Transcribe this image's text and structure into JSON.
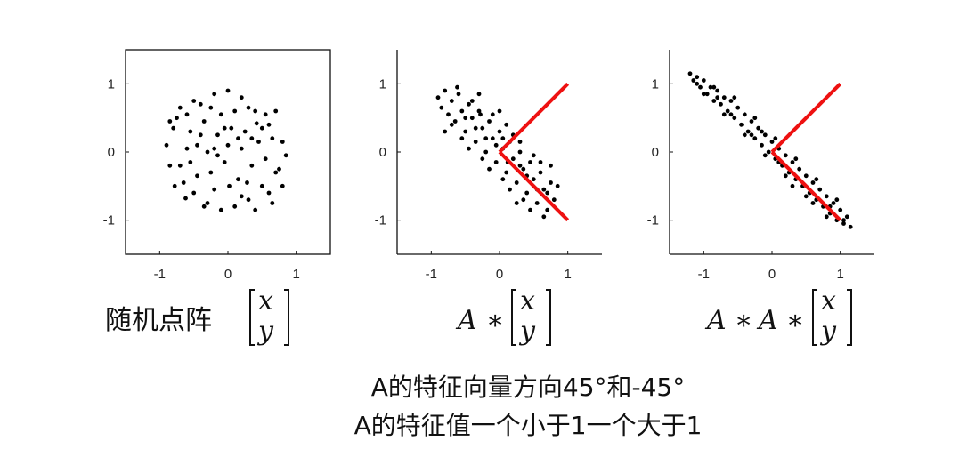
{
  "chart_data": [
    {
      "type": "scatter",
      "name": "random-points",
      "title": "",
      "xlim": [
        -1.5,
        1.5
      ],
      "ylim": [
        -1.5,
        1.5
      ],
      "xticks": [
        -1,
        0,
        1
      ],
      "yticks": [
        -1,
        0,
        1
      ],
      "xtick_labels": [
        "-1",
        "0",
        "1"
      ],
      "ytick_labels": [
        "1",
        "0",
        "-1"
      ],
      "box": true,
      "grid": false,
      "point_color": "#000000",
      "points": [
        [
          -0.9,
          0.1
        ],
        [
          -0.8,
          0.35
        ],
        [
          -0.7,
          -0.2
        ],
        [
          -0.6,
          0.55
        ],
        [
          -0.5,
          -0.6
        ],
        [
          -0.4,
          0.7
        ],
        [
          -0.3,
          -0.75
        ],
        [
          -0.2,
          0.85
        ],
        [
          -0.1,
          -0.85
        ],
        [
          0.0,
          0.9
        ],
        [
          0.1,
          -0.8
        ],
        [
          0.2,
          0.8
        ],
        [
          0.3,
          -0.7
        ],
        [
          0.4,
          0.6
        ],
        [
          0.5,
          -0.5
        ],
        [
          0.6,
          0.4
        ],
        [
          0.7,
          -0.3
        ],
        [
          0.8,
          0.15
        ],
        [
          0.85,
          -0.05
        ],
        [
          -0.85,
          -0.2
        ],
        [
          -0.75,
          0.5
        ],
        [
          -0.65,
          -0.45
        ],
        [
          -0.55,
          0.3
        ],
        [
          -0.45,
          -0.35
        ],
        [
          -0.35,
          0.45
        ],
        [
          -0.25,
          -0.3
        ],
        [
          -0.15,
          0.25
        ],
        [
          -0.05,
          -0.15
        ],
        [
          0.05,
          0.35
        ],
        [
          0.15,
          -0.4
        ],
        [
          0.25,
          0.3
        ],
        [
          0.35,
          -0.2
        ],
        [
          0.45,
          0.15
        ],
        [
          0.55,
          -0.1
        ],
        [
          0.65,
          0.2
        ],
        [
          0.75,
          -0.25
        ],
        [
          -0.6,
          0.05
        ],
        [
          -0.45,
          0.1
        ],
        [
          -0.3,
          0.0
        ],
        [
          -0.15,
          -0.05
        ],
        [
          0.0,
          0.1
        ],
        [
          0.2,
          0.05
        ],
        [
          0.35,
          0.2
        ],
        [
          0.5,
          0.35
        ],
        [
          0.6,
          -0.6
        ],
        [
          -0.2,
          -0.55
        ],
        [
          -0.5,
          0.75
        ],
        [
          0.3,
          0.65
        ],
        [
          -0.7,
          0.65
        ],
        [
          -0.85,
          0.45
        ],
        [
          0.7,
          0.6
        ],
        [
          0.4,
          -0.85
        ],
        [
          -0.35,
          -0.8
        ],
        [
          0.1,
          0.6
        ],
        [
          -0.1,
          0.55
        ],
        [
          0.2,
          -0.65
        ],
        [
          -0.25,
          0.65
        ],
        [
          0.55,
          0.55
        ],
        [
          -0.55,
          -0.15
        ],
        [
          0.8,
          -0.5
        ],
        [
          -0.4,
          0.25
        ],
        [
          0.15,
          0.2
        ],
        [
          -0.05,
          0.35
        ],
        [
          0.28,
          -0.45
        ],
        [
          -0.62,
          -0.68
        ],
        [
          0.65,
          -0.75
        ],
        [
          -0.78,
          -0.5
        ],
        [
          0.02,
          -0.5
        ],
        [
          -0.2,
          0.05
        ],
        [
          0.42,
          0.42
        ]
      ]
    },
    {
      "type": "scatter",
      "name": "A-times-points",
      "title": "",
      "xlim": [
        -1.5,
        1.5
      ],
      "ylim": [
        -1.5,
        1.5
      ],
      "xticks": [
        -1,
        0,
        1
      ],
      "yticks": [
        -1,
        0,
        1
      ],
      "xtick_labels": [
        "-1",
        "0",
        "1"
      ],
      "ytick_labels": [
        "1",
        "0",
        "-1"
      ],
      "box": false,
      "grid": false,
      "point_color": "#000000",
      "line_color": "#ee1111",
      "lines": [
        {
          "x": [
            0,
            1
          ],
          "y": [
            0,
            1
          ]
        },
        {
          "x": [
            0,
            1
          ],
          "y": [
            0,
            -1
          ]
        }
      ],
      "points": [
        [
          -0.9,
          0.8
        ],
        [
          -0.85,
          0.65
        ],
        [
          -0.8,
          0.9
        ],
        [
          -0.75,
          0.55
        ],
        [
          -0.7,
          0.75
        ],
        [
          -0.65,
          0.45
        ],
        [
          -0.6,
          0.85
        ],
        [
          -0.55,
          0.6
        ],
        [
          -0.5,
          0.3
        ],
        [
          -0.45,
          0.7
        ],
        [
          -0.4,
          0.5
        ],
        [
          -0.35,
          0.15
        ],
        [
          -0.3,
          0.6
        ],
        [
          -0.25,
          0.35
        ],
        [
          -0.2,
          0.0
        ],
        [
          -0.15,
          0.45
        ],
        [
          -0.1,
          0.2
        ],
        [
          -0.05,
          -0.15
        ],
        [
          0.0,
          0.3
        ],
        [
          0.05,
          0.05
        ],
        [
          0.1,
          -0.3
        ],
        [
          0.15,
          0.15
        ],
        [
          0.2,
          -0.1
        ],
        [
          0.25,
          -0.45
        ],
        [
          0.3,
          0.0
        ],
        [
          0.35,
          -0.25
        ],
        [
          0.4,
          -0.6
        ],
        [
          0.45,
          -0.15
        ],
        [
          0.5,
          -0.4
        ],
        [
          0.55,
          -0.75
        ],
        [
          0.6,
          -0.3
        ],
        [
          0.65,
          -0.55
        ],
        [
          0.7,
          -0.85
        ],
        [
          0.75,
          -0.45
        ],
        [
          0.8,
          -0.7
        ],
        [
          0.85,
          -0.5
        ],
        [
          -0.7,
          0.4
        ],
        [
          -0.55,
          0.2
        ],
        [
          -0.4,
          0.75
        ],
        [
          -0.25,
          -0.1
        ],
        [
          -0.1,
          0.55
        ],
        [
          0.05,
          -0.4
        ],
        [
          0.2,
          0.25
        ],
        [
          0.35,
          -0.7
        ],
        [
          0.5,
          -0.05
        ],
        [
          0.65,
          -0.95
        ],
        [
          -0.45,
          0.05
        ],
        [
          -0.3,
          0.85
        ],
        [
          -0.15,
          -0.25
        ],
        [
          0.0,
          0.6
        ],
        [
          0.15,
          -0.55
        ],
        [
          0.3,
          0.15
        ],
        [
          0.45,
          -0.85
        ],
        [
          0.6,
          -0.15
        ],
        [
          0.75,
          -0.2
        ],
        [
          -0.8,
          0.3
        ],
        [
          -0.62,
          0.95
        ],
        [
          -0.35,
          0.35
        ],
        [
          0.1,
          0.4
        ],
        [
          0.25,
          -0.75
        ],
        [
          0.4,
          -0.35
        ],
        [
          0.55,
          -0.55
        ],
        [
          -0.05,
          0.1
        ],
        [
          0.05,
          0.2
        ],
        [
          -0.2,
          0.2
        ],
        [
          0.7,
          -0.6
        ],
        [
          -0.5,
          0.5
        ],
        [
          0.3,
          -0.2
        ],
        [
          0.12,
          -0.15
        ],
        [
          -0.28,
          0.55
        ]
      ]
    },
    {
      "type": "scatter",
      "name": "A-A-times-points",
      "title": "",
      "xlim": [
        -1.5,
        1.5
      ],
      "ylim": [
        -1.5,
        1.5
      ],
      "xticks": [
        -1,
        0,
        1
      ],
      "yticks": [
        -1,
        0,
        1
      ],
      "xtick_labels": [
        "-1",
        "0",
        "1"
      ],
      "ytick_labels": [
        "1",
        "0",
        "-1"
      ],
      "box": false,
      "grid": false,
      "point_color": "#000000",
      "line_color": "#ee1111",
      "lines": [
        {
          "x": [
            0,
            1
          ],
          "y": [
            0,
            1
          ]
        },
        {
          "x": [
            0,
            1
          ],
          "y": [
            0,
            -1
          ]
        }
      ],
      "points": [
        [
          -1.2,
          1.15
        ],
        [
          -1.15,
          1.05
        ],
        [
          -1.1,
          1.1
        ],
        [
          -1.05,
          0.95
        ],
        [
          -1.0,
          1.05
        ],
        [
          -0.95,
          0.85
        ],
        [
          -0.9,
          0.95
        ],
        [
          -0.85,
          0.75
        ],
        [
          -0.8,
          0.9
        ],
        [
          -0.75,
          0.7
        ],
        [
          -0.7,
          0.8
        ],
        [
          -0.65,
          0.6
        ],
        [
          -0.6,
          0.75
        ],
        [
          -0.55,
          0.5
        ],
        [
          -0.5,
          0.65
        ],
        [
          -0.45,
          0.4
        ],
        [
          -0.4,
          0.55
        ],
        [
          -0.35,
          0.3
        ],
        [
          -0.3,
          0.45
        ],
        [
          -0.25,
          0.2
        ],
        [
          -0.2,
          0.35
        ],
        [
          -0.15,
          0.1
        ],
        [
          -0.1,
          0.25
        ],
        [
          -0.05,
          0.0
        ],
        [
          0.0,
          0.15
        ],
        [
          0.05,
          -0.1
        ],
        [
          0.1,
          0.05
        ],
        [
          0.15,
          -0.2
        ],
        [
          0.2,
          -0.05
        ],
        [
          0.25,
          -0.3
        ],
        [
          0.3,
          -0.15
        ],
        [
          0.35,
          -0.4
        ],
        [
          0.4,
          -0.25
        ],
        [
          0.45,
          -0.5
        ],
        [
          0.5,
          -0.35
        ],
        [
          0.55,
          -0.6
        ],
        [
          0.6,
          -0.45
        ],
        [
          0.65,
          -0.7
        ],
        [
          0.7,
          -0.55
        ],
        [
          0.75,
          -0.8
        ],
        [
          0.8,
          -0.65
        ],
        [
          0.85,
          -0.9
        ],
        [
          0.9,
          -0.75
        ],
        [
          0.95,
          -1.0
        ],
        [
          1.0,
          -0.85
        ],
        [
          1.05,
          -1.0
        ],
        [
          1.1,
          -0.95
        ],
        [
          1.15,
          -1.1
        ],
        [
          -1.0,
          0.85
        ],
        [
          -0.85,
          0.95
        ],
        [
          -0.7,
          0.55
        ],
        [
          -0.55,
          0.8
        ],
        [
          -0.4,
          0.25
        ],
        [
          -0.25,
          0.5
        ],
        [
          -0.1,
          -0.05
        ],
        [
          0.05,
          0.2
        ],
        [
          0.2,
          -0.35
        ],
        [
          0.35,
          -0.1
        ],
        [
          0.5,
          -0.65
        ],
        [
          0.65,
          -0.4
        ],
        [
          0.8,
          -0.95
        ],
        [
          0.95,
          -0.7
        ],
        [
          -0.3,
          0.25
        ],
        [
          0.1,
          -0.15
        ],
        [
          -0.6,
          0.55
        ],
        [
          0.6,
          -0.75
        ],
        [
          -0.15,
          0.3
        ],
        [
          0.3,
          -0.5
        ],
        [
          -0.8,
          0.8
        ],
        [
          0.85,
          -0.8
        ],
        [
          1.05,
          -1.05
        ],
        [
          -1.1,
          1.0
        ]
      ]
    }
  ],
  "captions": {
    "c1_text": "随机点阵",
    "c1_vec_top": "x",
    "c1_vec_bottom": "y",
    "c2_A": "A",
    "c2_op": "∗",
    "c2_vec_top": "x",
    "c2_vec_bottom": "y",
    "c3_A1": "A",
    "c3_op1": "∗",
    "c3_A2": "A",
    "c3_op2": "∗",
    "c3_vec_top": "x",
    "c3_vec_bottom": "y"
  },
  "notes": {
    "line1": "A的特征向量方向45°和-45°",
    "line2": "A的特征值一个小于1一个大于1"
  }
}
